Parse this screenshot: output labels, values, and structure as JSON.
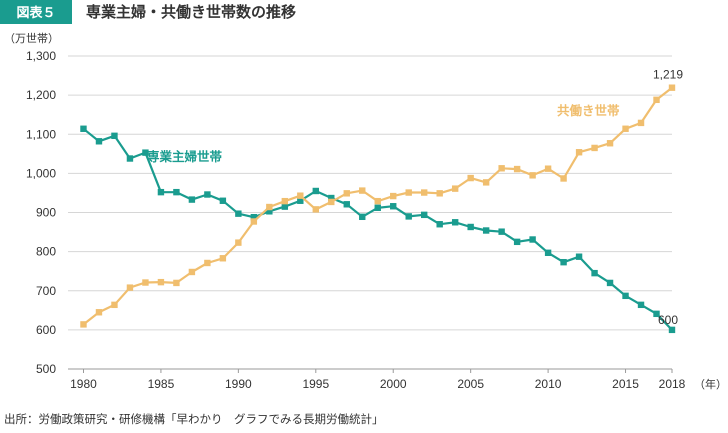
{
  "header": {
    "badge": "図表５",
    "title": "専業主婦・共働き世帯数の推移"
  },
  "source": "出所：労働政策研究・研修機構「早わかり　グラフでみる長期労働統計」",
  "colors": {
    "teal": "#1a9c8f",
    "orange": "#f0be6e",
    "badge_bg": "#1a9c8f"
  },
  "chart_data": {
    "type": "line",
    "ylabel": "（万世帯）",
    "xlabel": "（年）",
    "ylim": [
      500,
      1300
    ],
    "xlim": [
      1979,
      2018
    ],
    "yticks": [
      500,
      600,
      700,
      800,
      900,
      1000,
      1100,
      1200,
      1300
    ],
    "ytick_labels": [
      "500",
      "600",
      "700",
      "800",
      "900",
      "1,000",
      "1,100",
      "1,200",
      "1,300"
    ],
    "xticks": [
      1980,
      1985,
      1990,
      1995,
      2000,
      2005,
      2010,
      2015,
      2018
    ],
    "xtick_labels": [
      "1980",
      "1985",
      "1990",
      "1995",
      "2000",
      "2005",
      "2010",
      "2015",
      "2018"
    ],
    "grid": "horizontal",
    "x": [
      1980,
      1981,
      1982,
      1983,
      1984,
      1985,
      1986,
      1987,
      1988,
      1989,
      1990,
      1991,
      1992,
      1993,
      1994,
      1995,
      1996,
      1997,
      1998,
      1999,
      2000,
      2001,
      2002,
      2003,
      2004,
      2005,
      2006,
      2007,
      2008,
      2009,
      2010,
      2011,
      2012,
      2013,
      2014,
      2015,
      2016,
      2017,
      2018
    ],
    "series": [
      {
        "name": "専業主婦世帯",
        "color": "#1a9c8f",
        "values": [
          1114,
          1082,
          1096,
          1038,
          1053,
          952,
          952,
          933,
          946,
          930,
          897,
          888,
          903,
          915,
          930,
          955,
          937,
          921,
          889,
          912,
          916,
          890,
          894,
          870,
          875,
          863,
          854,
          851,
          825,
          831,
          797,
          773,
          787,
          745,
          720,
          687,
          664,
          641,
          600
        ],
        "end_label": "600"
      },
      {
        "name": "共働き世帯",
        "color": "#f0be6e",
        "values": [
          614,
          645,
          664,
          708,
          721,
          722,
          720,
          748,
          771,
          783,
          823,
          877,
          914,
          929,
          943,
          908,
          927,
          949,
          956,
          929,
          942,
          951,
          951,
          949,
          961,
          988,
          977,
          1013,
          1011,
          995,
          1012,
          987,
          1054,
          1065,
          1077,
          1114,
          1129,
          1188,
          1219
        ],
        "end_label": "1,219"
      }
    ]
  }
}
